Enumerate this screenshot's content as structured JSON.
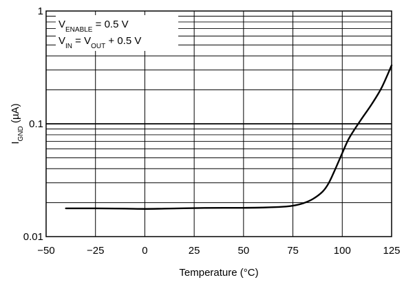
{
  "chart_data": {
    "type": "line",
    "title": "",
    "xlabel": "Temperature (°C)",
    "ylabel": {
      "main": "I",
      "sub": "GND",
      "unit": " (µA)"
    },
    "xlim": [
      -50,
      125
    ],
    "ylim": [
      0.01,
      1
    ],
    "yscale": "log",
    "x_ticks": [
      -50,
      -25,
      0,
      25,
      50,
      75,
      100,
      125
    ],
    "x_tick_labels": [
      "−50",
      "−25",
      "0",
      "25",
      "50",
      "75",
      "100",
      "125"
    ],
    "y_ticks": [
      0.01,
      0.1,
      1
    ],
    "y_tick_labels": [
      "0.01",
      "0.1",
      "1"
    ],
    "grid": true,
    "annotations": [
      {
        "parts": [
          {
            "t": "V"
          },
          {
            "t": "ENABLE",
            "sub": true
          },
          {
            "t": " = 0.5 V"
          }
        ]
      },
      {
        "parts": [
          {
            "t": "V"
          },
          {
            "t": "IN",
            "sub": true
          },
          {
            "t": " = V"
          },
          {
            "t": "OUT",
            "sub": true
          },
          {
            "t": " + 0.5 V"
          }
        ]
      }
    ],
    "series": [
      {
        "x": [
          -40,
          -25,
          -10,
          0,
          10,
          25,
          40,
          50,
          60,
          70,
          75,
          80,
          85,
          90,
          93,
          96,
          100,
          103,
          106,
          110,
          115,
          120,
          125
        ],
        "y": [
          0.0178,
          0.0178,
          0.0177,
          0.0176,
          0.0177,
          0.0179,
          0.018,
          0.018,
          0.0181,
          0.0184,
          0.0188,
          0.0197,
          0.0215,
          0.025,
          0.0295,
          0.038,
          0.055,
          0.072,
          0.088,
          0.112,
          0.15,
          0.21,
          0.33
        ]
      }
    ]
  },
  "colors": {
    "line": "#000000",
    "grid": "#000000",
    "background": "#ffffff"
  }
}
